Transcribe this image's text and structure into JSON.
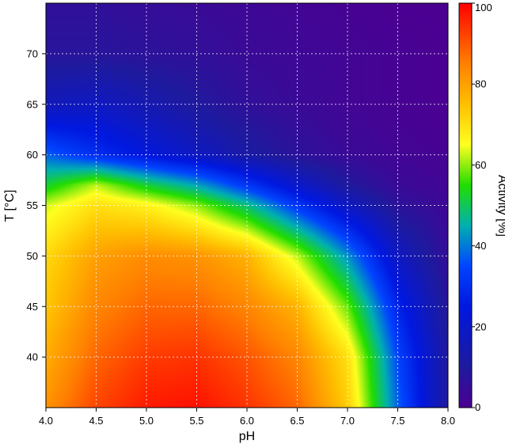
{
  "chart_data": {
    "type": "heatmap",
    "xlabel": "pH",
    "ylabel": "T [°C]",
    "colorbar_label": "Activity [%]",
    "xlim": [
      4.0,
      8.0
    ],
    "ylim": [
      35,
      75
    ],
    "zlim": [
      0,
      100
    ],
    "x_ticks": [
      "4.0",
      "4.5",
      "5.0",
      "5.5",
      "6.0",
      "6.5",
      "7.0",
      "7.5",
      "8.0"
    ],
    "y_ticks": [
      "40",
      "45",
      "50",
      "55",
      "60",
      "65",
      "70"
    ],
    "colorbar_ticks": [
      "0",
      "20",
      "40",
      "60",
      "80",
      "100"
    ],
    "grid": true,
    "colorscale": [
      {
        "value": 0,
        "color": "#4b0092"
      },
      {
        "value": 10,
        "color": "#1f1a9e"
      },
      {
        "value": 25,
        "color": "#0018e0"
      },
      {
        "value": 35,
        "color": "#0044ff"
      },
      {
        "value": 45,
        "color": "#00b0b0"
      },
      {
        "value": 55,
        "color": "#22dd00"
      },
      {
        "value": 65,
        "color": "#ffff20"
      },
      {
        "value": 75,
        "color": "#ffc000"
      },
      {
        "value": 85,
        "color": "#ff8000"
      },
      {
        "value": 100,
        "color": "#ff0000"
      }
    ],
    "x": [
      4.0,
      4.5,
      5.0,
      5.5,
      6.0,
      6.5,
      7.0,
      7.5,
      8.0
    ],
    "y": [
      35,
      40,
      45,
      50,
      55,
      57,
      60,
      65,
      70,
      75
    ],
    "z": [
      [
        82,
        92,
        97,
        98,
        94,
        88,
        73,
        38,
        10
      ],
      [
        78,
        88,
        93,
        94,
        90,
        84,
        70,
        35,
        10
      ],
      [
        74,
        84,
        88,
        88,
        84,
        77,
        58,
        28,
        8
      ],
      [
        71,
        80,
        83,
        82,
        77,
        62,
        42,
        18,
        5
      ],
      [
        63,
        70,
        67,
        60,
        48,
        32,
        18,
        7,
        3
      ],
      [
        52,
        62,
        52,
        44,
        32,
        20,
        10,
        4,
        2
      ],
      [
        38,
        30,
        24,
        18,
        12,
        7,
        4,
        2,
        1
      ],
      [
        16,
        18,
        14,
        10,
        6,
        4,
        2,
        1,
        0
      ],
      [
        8,
        8,
        7,
        6,
        4,
        3,
        2,
        1,
        0
      ],
      [
        6,
        6,
        5,
        4,
        3,
        2,
        1,
        0,
        0
      ]
    ]
  }
}
